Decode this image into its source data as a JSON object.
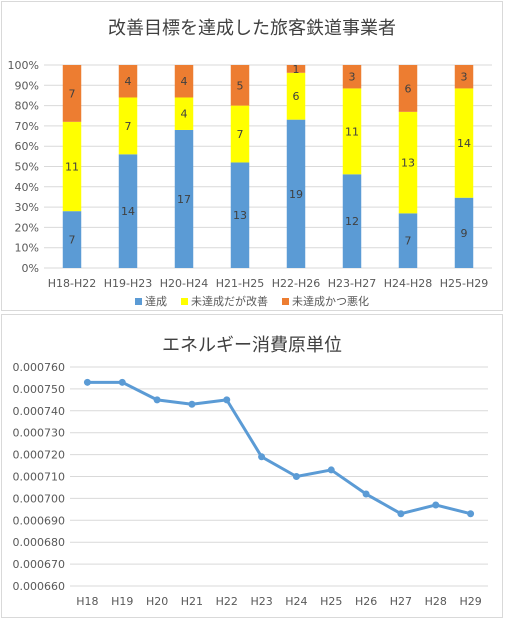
{
  "chart_data": [
    {
      "type": "bar",
      "stacked": "100%",
      "title": "改善目標を達成した旅客鉄道事業者",
      "categories": [
        "H18-H22",
        "H19-H23",
        "H20-H24",
        "H21-H25",
        "H22-H26",
        "H23-H27",
        "H24-H28",
        "H25-H29"
      ],
      "series": [
        {
          "name": "達成",
          "color": "#5b9bd5",
          "values": [
            7,
            14,
            17,
            13,
            19,
            12,
            7,
            9
          ]
        },
        {
          "name": "未達成だが改善",
          "color": "#ffff00",
          "values": [
            11,
            7,
            4,
            7,
            6,
            11,
            13,
            14
          ]
        },
        {
          "name": "未達成かつ悪化",
          "color": "#ed7d31",
          "values": [
            7,
            4,
            4,
            5,
            1,
            3,
            6,
            3
          ]
        }
      ],
      "yticks": [
        "0%",
        "10%",
        "20%",
        "30%",
        "40%",
        "50%",
        "60%",
        "70%",
        "80%",
        "90%",
        "100%"
      ],
      "ylim": [
        0,
        100
      ],
      "grid": true,
      "legend": "bottom"
    },
    {
      "type": "line",
      "title": "エネルギー消費原単位",
      "x": [
        "H18",
        "H19",
        "H20",
        "H21",
        "H22",
        "H23",
        "H24",
        "H25",
        "H26",
        "H27",
        "H28",
        "H29"
      ],
      "series": [
        {
          "color": "#5b9bd5",
          "values": [
            0.000753,
            0.000753,
            0.000745,
            0.000743,
            0.000745,
            0.000719,
            0.00071,
            0.000713,
            0.000702,
            0.000693,
            0.000697,
            0.000693
          ]
        }
      ],
      "yticks": [
        "0.000660",
        "0.000670",
        "0.000680",
        "0.000690",
        "0.000700",
        "0.000710",
        "0.000720",
        "0.000730",
        "0.000740",
        "0.000750",
        "0.000760"
      ],
      "ylim": [
        0.00066,
        0.00076
      ],
      "grid": true
    }
  ]
}
